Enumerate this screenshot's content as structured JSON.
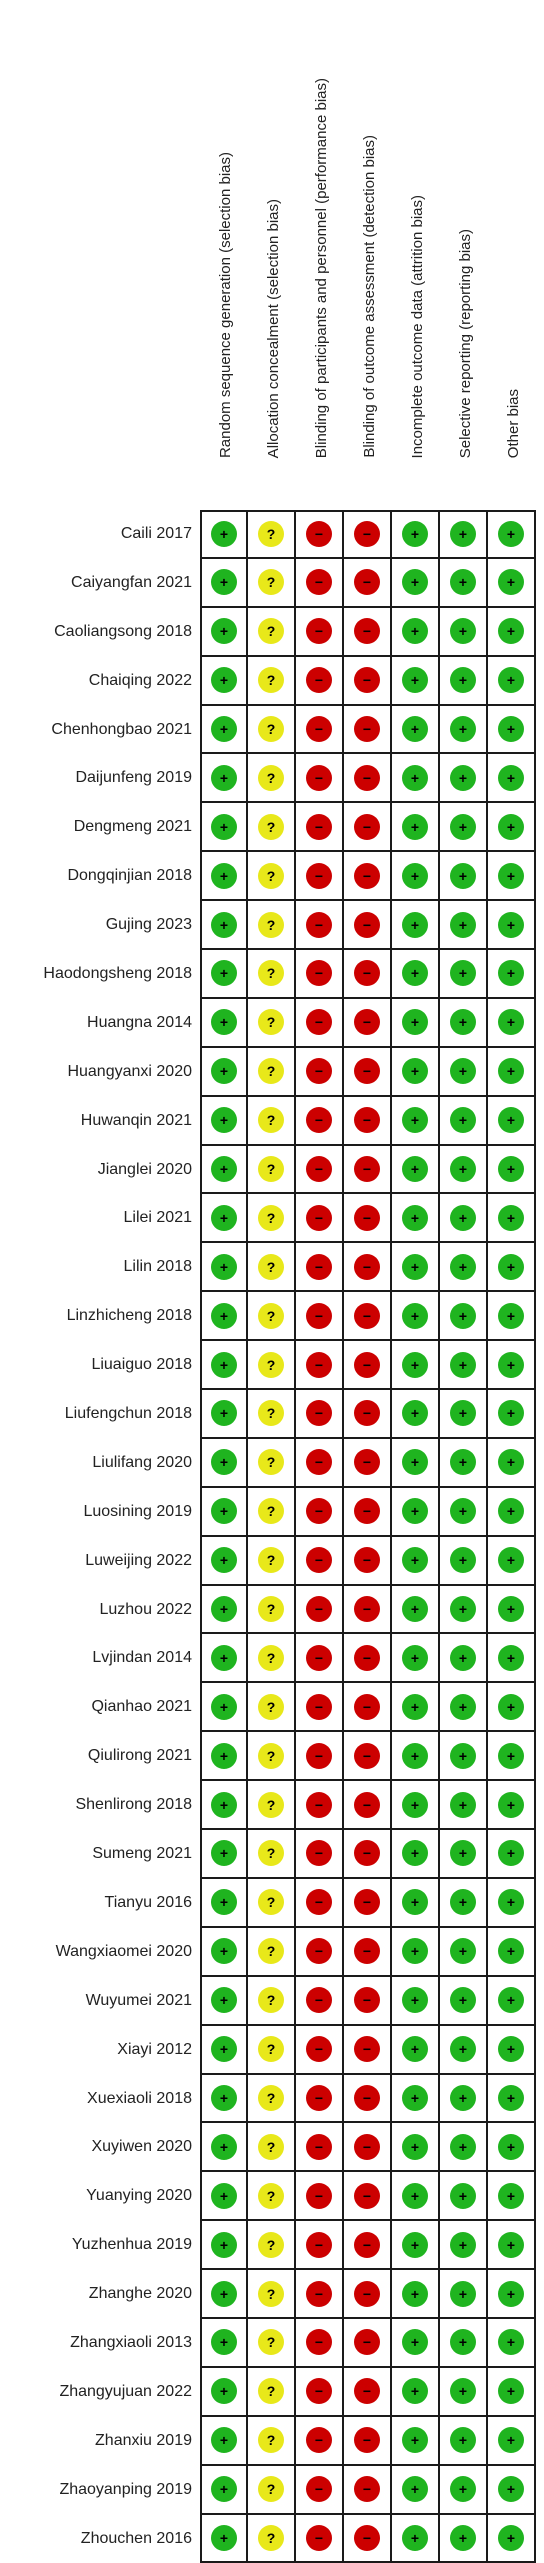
{
  "domains": [
    "Random sequence generation (selection bias)",
    "Allocation concealment (selection bias)",
    "Blinding of participants and personnel (performance bias)",
    "Blinding of outcome assessment (detection bias)",
    "Incomplete outcome data (attrition bias)",
    "Selective reporting (reporting bias)",
    "Other bias"
  ],
  "symbols": {
    "low": "+",
    "unclear": "?",
    "high": "−"
  },
  "colors": {
    "low": "#1fb41f",
    "unclear": "#e8e81a",
    "high": "#cc0000"
  },
  "studies": [
    {
      "name": "Caili 2017",
      "ratings": [
        "low",
        "unclear",
        "high",
        "high",
        "low",
        "low",
        "low"
      ]
    },
    {
      "name": "Caiyangfan 2021",
      "ratings": [
        "low",
        "unclear",
        "high",
        "high",
        "low",
        "low",
        "low"
      ]
    },
    {
      "name": "Caoliangsong 2018",
      "ratings": [
        "low",
        "unclear",
        "high",
        "high",
        "low",
        "low",
        "low"
      ]
    },
    {
      "name": "Chaiqing 2022",
      "ratings": [
        "low",
        "unclear",
        "high",
        "high",
        "low",
        "low",
        "low"
      ]
    },
    {
      "name": "Chenhongbao 2021",
      "ratings": [
        "low",
        "unclear",
        "high",
        "high",
        "low",
        "low",
        "low"
      ]
    },
    {
      "name": "Daijunfeng 2019",
      "ratings": [
        "low",
        "unclear",
        "high",
        "high",
        "low",
        "low",
        "low"
      ]
    },
    {
      "name": "Dengmeng 2021",
      "ratings": [
        "low",
        "unclear",
        "high",
        "high",
        "low",
        "low",
        "low"
      ]
    },
    {
      "name": "Dongqinjian 2018",
      "ratings": [
        "low",
        "unclear",
        "high",
        "high",
        "low",
        "low",
        "low"
      ]
    },
    {
      "name": "Gujing 2023",
      "ratings": [
        "low",
        "unclear",
        "high",
        "high",
        "low",
        "low",
        "low"
      ]
    },
    {
      "name": "Haodongsheng 2018",
      "ratings": [
        "low",
        "unclear",
        "high",
        "high",
        "low",
        "low",
        "low"
      ]
    },
    {
      "name": "Huangna 2014",
      "ratings": [
        "low",
        "unclear",
        "high",
        "high",
        "low",
        "low",
        "low"
      ]
    },
    {
      "name": "Huangyanxi 2020",
      "ratings": [
        "low",
        "unclear",
        "high",
        "high",
        "low",
        "low",
        "low"
      ]
    },
    {
      "name": "Huwanqin 2021",
      "ratings": [
        "low",
        "unclear",
        "high",
        "high",
        "low",
        "low",
        "low"
      ]
    },
    {
      "name": "Jianglei 2020",
      "ratings": [
        "low",
        "unclear",
        "high",
        "high",
        "low",
        "low",
        "low"
      ]
    },
    {
      "name": "Lilei 2021",
      "ratings": [
        "low",
        "unclear",
        "high",
        "high",
        "low",
        "low",
        "low"
      ]
    },
    {
      "name": "Lilin 2018",
      "ratings": [
        "low",
        "unclear",
        "high",
        "high",
        "low",
        "low",
        "low"
      ]
    },
    {
      "name": "Linzhicheng 2018",
      "ratings": [
        "low",
        "unclear",
        "high",
        "high",
        "low",
        "low",
        "low"
      ]
    },
    {
      "name": "Liuaiguo 2018",
      "ratings": [
        "low",
        "unclear",
        "high",
        "high",
        "low",
        "low",
        "low"
      ]
    },
    {
      "name": "Liufengchun 2018",
      "ratings": [
        "low",
        "unclear",
        "high",
        "high",
        "low",
        "low",
        "low"
      ]
    },
    {
      "name": "Liulifang 2020",
      "ratings": [
        "low",
        "unclear",
        "high",
        "high",
        "low",
        "low",
        "low"
      ]
    },
    {
      "name": "Luosining 2019",
      "ratings": [
        "low",
        "unclear",
        "high",
        "high",
        "low",
        "low",
        "low"
      ]
    },
    {
      "name": "Luweijing 2022",
      "ratings": [
        "low",
        "unclear",
        "high",
        "high",
        "low",
        "low",
        "low"
      ]
    },
    {
      "name": "Luzhou 2022",
      "ratings": [
        "low",
        "unclear",
        "high",
        "high",
        "low",
        "low",
        "low"
      ]
    },
    {
      "name": "Lvjindan 2014",
      "ratings": [
        "low",
        "unclear",
        "high",
        "high",
        "low",
        "low",
        "low"
      ]
    },
    {
      "name": "Qianhao 2021",
      "ratings": [
        "low",
        "unclear",
        "high",
        "high",
        "low",
        "low",
        "low"
      ]
    },
    {
      "name": "Qiulirong 2021",
      "ratings": [
        "low",
        "unclear",
        "high",
        "high",
        "low",
        "low",
        "low"
      ]
    },
    {
      "name": "Shenlirong 2018",
      "ratings": [
        "low",
        "unclear",
        "high",
        "high",
        "low",
        "low",
        "low"
      ]
    },
    {
      "name": "Sumeng 2021",
      "ratings": [
        "low",
        "unclear",
        "high",
        "high",
        "low",
        "low",
        "low"
      ]
    },
    {
      "name": "Tianyu 2016",
      "ratings": [
        "low",
        "unclear",
        "high",
        "high",
        "low",
        "low",
        "low"
      ]
    },
    {
      "name": "Wangxiaomei 2020",
      "ratings": [
        "low",
        "unclear",
        "high",
        "high",
        "low",
        "low",
        "low"
      ]
    },
    {
      "name": "Wuyumei 2021",
      "ratings": [
        "low",
        "unclear",
        "high",
        "high",
        "low",
        "low",
        "low"
      ]
    },
    {
      "name": "Xiayi 2012",
      "ratings": [
        "low",
        "unclear",
        "high",
        "high",
        "low",
        "low",
        "low"
      ]
    },
    {
      "name": "Xuexiaoli 2018",
      "ratings": [
        "low",
        "unclear",
        "high",
        "high",
        "low",
        "low",
        "low"
      ]
    },
    {
      "name": "Xuyiwen 2020",
      "ratings": [
        "low",
        "unclear",
        "high",
        "high",
        "low",
        "low",
        "low"
      ]
    },
    {
      "name": "Yuanying 2020",
      "ratings": [
        "low",
        "unclear",
        "high",
        "high",
        "low",
        "low",
        "low"
      ]
    },
    {
      "name": "Yuzhenhua 2019",
      "ratings": [
        "low",
        "unclear",
        "high",
        "high",
        "low",
        "low",
        "low"
      ]
    },
    {
      "name": "Zhanghe 2020",
      "ratings": [
        "low",
        "unclear",
        "high",
        "high",
        "low",
        "low",
        "low"
      ]
    },
    {
      "name": "Zhangxiaoli 2013",
      "ratings": [
        "low",
        "unclear",
        "high",
        "high",
        "low",
        "low",
        "low"
      ]
    },
    {
      "name": "Zhangyujuan 2022",
      "ratings": [
        "low",
        "unclear",
        "high",
        "high",
        "low",
        "low",
        "low"
      ]
    },
    {
      "name": "Zhanxiu 2019",
      "ratings": [
        "low",
        "unclear",
        "high",
        "high",
        "low",
        "low",
        "low"
      ]
    },
    {
      "name": "Zhaoyanping 2019",
      "ratings": [
        "low",
        "unclear",
        "high",
        "high",
        "low",
        "low",
        "low"
      ]
    },
    {
      "name": "Zhouchen 2016",
      "ratings": [
        "low",
        "unclear",
        "high",
        "high",
        "low",
        "low",
        "low"
      ]
    }
  ]
}
